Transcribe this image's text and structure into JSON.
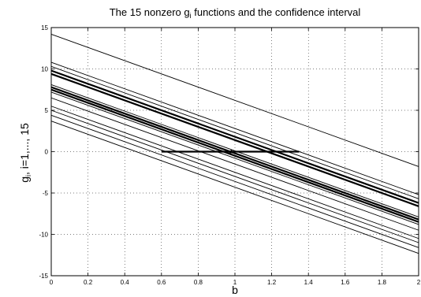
{
  "chart_data": {
    "type": "line",
    "title_main": "The 15 nonzero g",
    "title_sub": "i",
    "title_rest": " functions and the confidence interval",
    "xlabel": "b",
    "ylabel_main": "g",
    "ylabel_sub": "i",
    "ylabel_rest": ", i=1,..., 15",
    "xlim": [
      0,
      2
    ],
    "ylim": [
      -15,
      15
    ],
    "xticks": [
      "0",
      "0.2",
      "0.4",
      "0.6",
      "0.8",
      "1",
      "1.2",
      "1.4",
      "1.6",
      "1.8",
      "2"
    ],
    "yticks": [
      "15",
      "10",
      "5",
      "0",
      "-5",
      "-10",
      "-15"
    ],
    "grid": "dotted",
    "color": "#000000",
    "lines": [
      {
        "y0": 14.2,
        "y1": -1.8,
        "thick": false
      },
      {
        "y0": 10.8,
        "y1": -5.2,
        "thick": false
      },
      {
        "y0": 10.3,
        "y1": -5.7,
        "thick": false
      },
      {
        "y0": 9.8,
        "y1": -6.2,
        "thick": true
      },
      {
        "y0": 9.4,
        "y1": -6.6,
        "thick": true
      },
      {
        "y0": 8.1,
        "y1": -7.9,
        "thick": false
      },
      {
        "y0": 7.8,
        "y1": -8.2,
        "thick": true
      },
      {
        "y0": 7.5,
        "y1": -8.5,
        "thick": true
      },
      {
        "y0": 7.2,
        "y1": -8.8,
        "thick": false
      },
      {
        "y0": 6.5,
        "y1": -9.5,
        "thick": false
      },
      {
        "y0": 5.5,
        "y1": -10.5,
        "thick": false
      },
      {
        "y0": 5.0,
        "y1": -11.0,
        "thick": false
      },
      {
        "y0": 4.4,
        "y1": -11.6,
        "thick": false
      },
      {
        "y0": 3.7,
        "y1": -12.3,
        "thick": false
      },
      {
        "y0": 7.8,
        "y1": -8.2,
        "thick": false
      }
    ],
    "interval": {
      "x0": 0.6,
      "x1": 1.35,
      "y": 0
    },
    "marker": {
      "x": 0.98,
      "y": 0
    }
  }
}
